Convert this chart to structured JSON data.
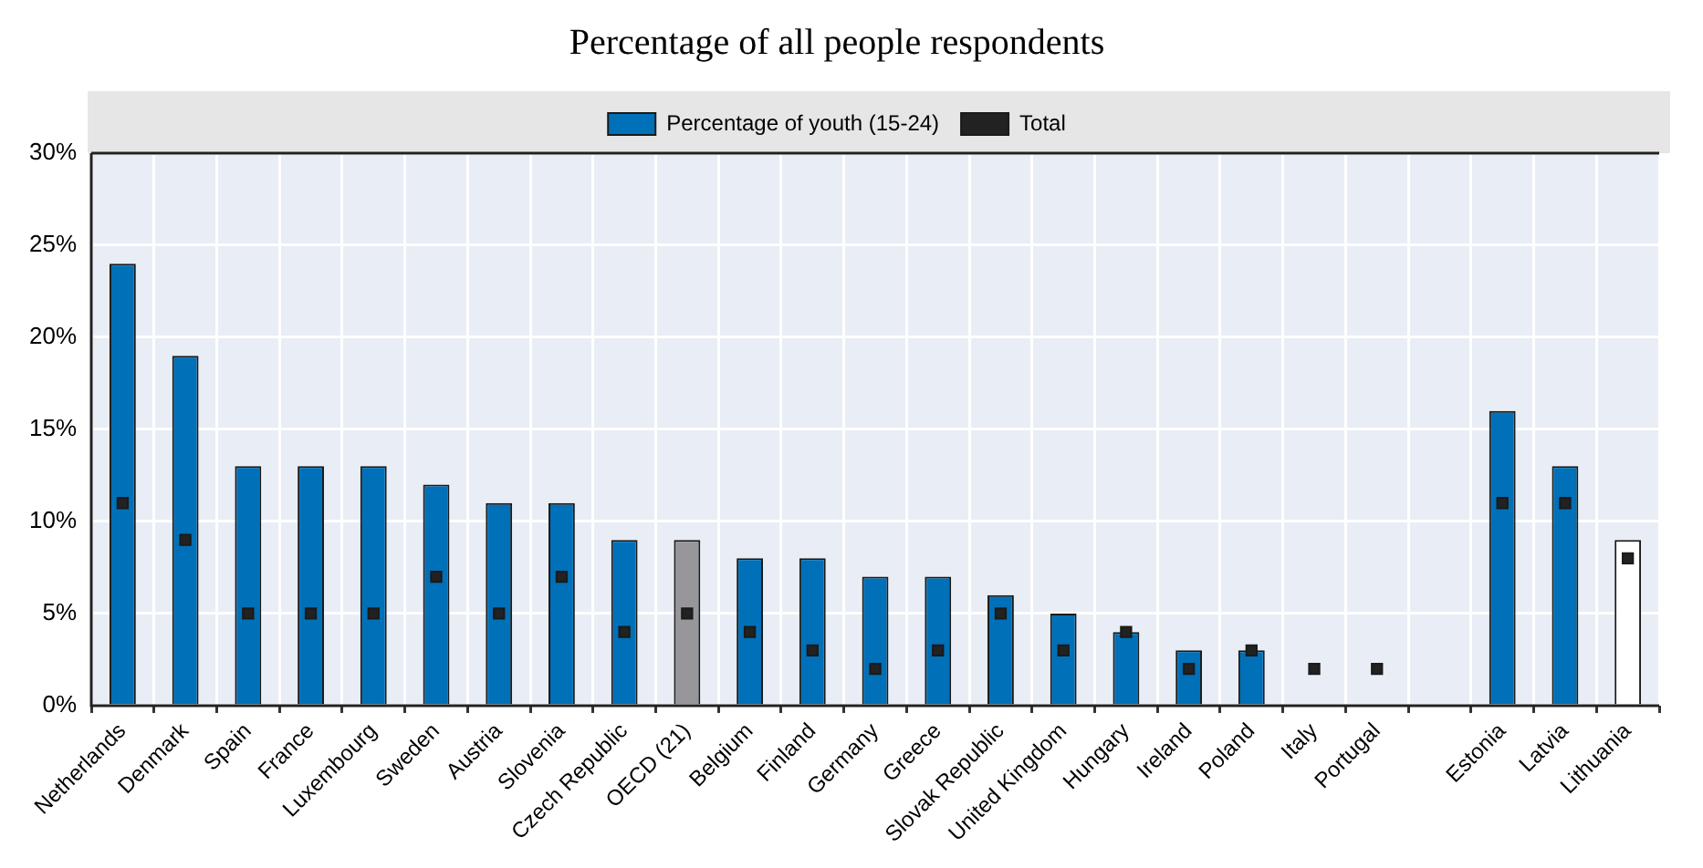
{
  "chart_data": {
    "type": "bar",
    "title": "Percentage of all people respondents",
    "categories": [
      "Netherlands",
      "Denmark",
      "Spain",
      "France",
      "Luxembourg",
      "Sweden",
      "Austria",
      "Slovenia",
      "Czech Republic",
      "OECD (21)",
      "Belgium",
      "Finland",
      "Germany",
      "Greece",
      "Slovak Republic",
      "United Kingdom",
      "Hungary",
      "Ireland",
      "Poland",
      "Italy",
      "Portugal",
      null,
      "Estonia",
      "Latvia",
      "Lithuania"
    ],
    "series": [
      {
        "name": "Percentage of youth (15-24)",
        "color": "#0070b8",
        "colors": [
          "#0070b8",
          "#0070b8",
          "#0070b8",
          "#0070b8",
          "#0070b8",
          "#0070b8",
          "#0070b8",
          "#0070b8",
          "#0070b8",
          "#97979b",
          "#0070b8",
          "#0070b8",
          "#0070b8",
          "#0070b8",
          "#0070b8",
          "#0070b8",
          "#0070b8",
          "#0070b8",
          "#0070b8",
          "#0070b8",
          "#0070b8",
          "#0070b8",
          "#0070b8",
          "#0070b8",
          "#ffffff"
        ],
        "values": [
          24,
          19,
          13,
          13,
          13,
          12,
          11,
          11,
          9,
          9,
          8,
          8,
          7,
          7,
          6,
          5,
          4,
          3,
          3,
          null,
          null,
          null,
          16,
          13,
          9
        ]
      },
      {
        "name": "Total",
        "type": "scatter",
        "color": "#222222",
        "x": [
          "Netherlands",
          "Denmark",
          "Spain",
          "France",
          "Luxembourg",
          "Sweden",
          "Austria",
          "Slovenia",
          "Czech Republic",
          "OECD (21)",
          "Belgium",
          "Finland",
          "Germany",
          "Greece",
          "Slovak Republic",
          "United Kingdom",
          "Hungary",
          "Ireland",
          "Poland",
          "Italy",
          "Portugal",
          null,
          "Estonia",
          "Latvia",
          "Lithuania"
        ],
        "values": [
          11,
          9,
          5,
          5,
          5,
          7,
          5,
          7,
          4,
          5,
          4,
          3,
          2,
          3,
          5,
          3,
          4,
          2,
          3,
          2,
          2,
          null,
          11,
          11,
          8
        ]
      }
    ],
    "ylim": [
      0,
      30
    ],
    "yticks": [
      {
        "value": 0,
        "label": "0%"
      },
      {
        "value": 5,
        "label": "5%"
      },
      {
        "value": 10,
        "label": "10%"
      },
      {
        "value": 15,
        "label": "15%"
      },
      {
        "value": 20,
        "label": "20%"
      },
      {
        "value": 25,
        "label": "25%"
      },
      {
        "value": 30,
        "label": "30%"
      }
    ],
    "grid": true,
    "legend": "top",
    "marker": "square"
  }
}
